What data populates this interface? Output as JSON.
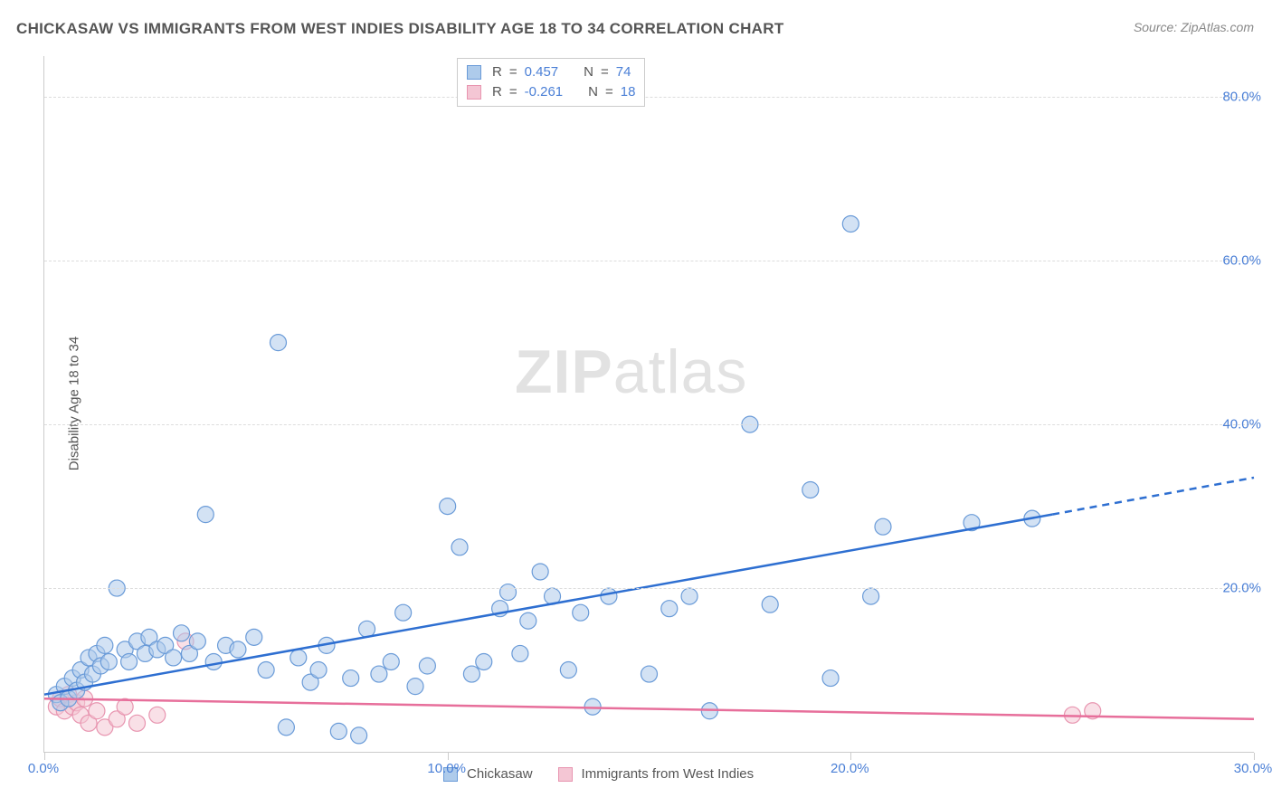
{
  "chart": {
    "type": "scatter",
    "title": "CHICKASAW VS IMMIGRANTS FROM WEST INDIES DISABILITY AGE 18 TO 34 CORRELATION CHART",
    "source": "Source: ZipAtlas.com",
    "ylabel": "Disability Age 18 to 34",
    "watermark_bold": "ZIP",
    "watermark_light": "atlas",
    "background_color": "#ffffff",
    "grid_color": "#dddddd",
    "axis_color": "#cccccc",
    "title_color": "#555555",
    "title_fontsize": 17,
    "label_fontsize": 15,
    "tick_color": "#4a7fd6",
    "xlim": [
      0,
      30
    ],
    "ylim": [
      0,
      85
    ],
    "xticks": [
      0,
      10,
      20,
      30
    ],
    "xtick_labels": [
      "0.0%",
      "10.0%",
      "20.0%",
      "30.0%"
    ],
    "yticks": [
      20,
      40,
      60,
      80
    ],
    "ytick_labels": [
      "20.0%",
      "40.0%",
      "60.0%",
      "80.0%"
    ],
    "marker_radius": 9,
    "marker_opacity": 0.55,
    "line_width": 2.5,
    "series": {
      "blue": {
        "label": "Chickasaw",
        "fill": "#aecbeb",
        "stroke": "#6a9bd8",
        "line_color": "#2e6fd1",
        "R": "0.457",
        "N": "74",
        "regression": {
          "x1": 0,
          "y1": 7.0,
          "x2_solid": 25.0,
          "y2_solid": 29.0,
          "x2_dash": 30.0,
          "y2_dash": 33.5
        },
        "points": [
          [
            0.3,
            7.0
          ],
          [
            0.4,
            6.0
          ],
          [
            0.5,
            8.0
          ],
          [
            0.6,
            6.5
          ],
          [
            0.7,
            9.0
          ],
          [
            0.8,
            7.5
          ],
          [
            0.9,
            10.0
          ],
          [
            1.0,
            8.5
          ],
          [
            1.1,
            11.5
          ],
          [
            1.2,
            9.5
          ],
          [
            1.3,
            12.0
          ],
          [
            1.4,
            10.5
          ],
          [
            1.5,
            13.0
          ],
          [
            1.6,
            11.0
          ],
          [
            1.8,
            20.0
          ],
          [
            2.0,
            12.5
          ],
          [
            2.1,
            11.0
          ],
          [
            2.3,
            13.5
          ],
          [
            2.5,
            12.0
          ],
          [
            2.6,
            14.0
          ],
          [
            2.8,
            12.5
          ],
          [
            3.0,
            13.0
          ],
          [
            3.2,
            11.5
          ],
          [
            3.4,
            14.5
          ],
          [
            3.6,
            12.0
          ],
          [
            3.8,
            13.5
          ],
          [
            4.0,
            29.0
          ],
          [
            4.2,
            11.0
          ],
          [
            4.5,
            13.0
          ],
          [
            4.8,
            12.5
          ],
          [
            5.2,
            14.0
          ],
          [
            5.5,
            10.0
          ],
          [
            5.8,
            50.0
          ],
          [
            6.0,
            3.0
          ],
          [
            6.3,
            11.5
          ],
          [
            6.6,
            8.5
          ],
          [
            6.8,
            10.0
          ],
          [
            7.0,
            13.0
          ],
          [
            7.3,
            2.5
          ],
          [
            7.6,
            9.0
          ],
          [
            7.8,
            2.0
          ],
          [
            8.0,
            15.0
          ],
          [
            8.3,
            9.5
          ],
          [
            8.6,
            11.0
          ],
          [
            8.9,
            17.0
          ],
          [
            9.2,
            8.0
          ],
          [
            9.5,
            10.5
          ],
          [
            10.0,
            30.0
          ],
          [
            10.3,
            25.0
          ],
          [
            10.6,
            9.5
          ],
          [
            10.9,
            11.0
          ],
          [
            11.3,
            17.5
          ],
          [
            11.5,
            19.5
          ],
          [
            11.8,
            12.0
          ],
          [
            12.0,
            16.0
          ],
          [
            12.3,
            22.0
          ],
          [
            12.6,
            19.0
          ],
          [
            13.0,
            10.0
          ],
          [
            13.3,
            17.0
          ],
          [
            13.6,
            5.5
          ],
          [
            14.0,
            19.0
          ],
          [
            15.0,
            9.5
          ],
          [
            15.5,
            17.5
          ],
          [
            16.0,
            19.0
          ],
          [
            16.5,
            5.0
          ],
          [
            17.5,
            40.0
          ],
          [
            18.0,
            18.0
          ],
          [
            19.0,
            32.0
          ],
          [
            19.5,
            9.0
          ],
          [
            20.0,
            64.5
          ],
          [
            20.5,
            19.0
          ],
          [
            20.8,
            27.5
          ],
          [
            23.0,
            28.0
          ],
          [
            24.5,
            28.5
          ]
        ]
      },
      "pink": {
        "label": "Immigrants from West Indies",
        "fill": "#f4c6d4",
        "stroke": "#e895b0",
        "line_color": "#e76f9b",
        "R": "-0.261",
        "N": "18",
        "regression": {
          "x1": 0,
          "y1": 6.5,
          "x2_solid": 30.0,
          "y2_solid": 4.0,
          "x2_dash": 30.0,
          "y2_dash": 4.0
        },
        "points": [
          [
            0.3,
            5.5
          ],
          [
            0.4,
            6.5
          ],
          [
            0.5,
            5.0
          ],
          [
            0.6,
            7.0
          ],
          [
            0.7,
            5.5
          ],
          [
            0.8,
            6.0
          ],
          [
            0.9,
            4.5
          ],
          [
            1.0,
            6.5
          ],
          [
            1.1,
            3.5
          ],
          [
            1.3,
            5.0
          ],
          [
            1.5,
            3.0
          ],
          [
            1.8,
            4.0
          ],
          [
            2.0,
            5.5
          ],
          [
            2.3,
            3.5
          ],
          [
            2.8,
            4.5
          ],
          [
            3.5,
            13.5
          ],
          [
            25.5,
            4.5
          ],
          [
            26.0,
            5.0
          ]
        ]
      }
    },
    "legend_top": {
      "r_label": "R",
      "n_label": "N",
      "eq": "="
    }
  }
}
